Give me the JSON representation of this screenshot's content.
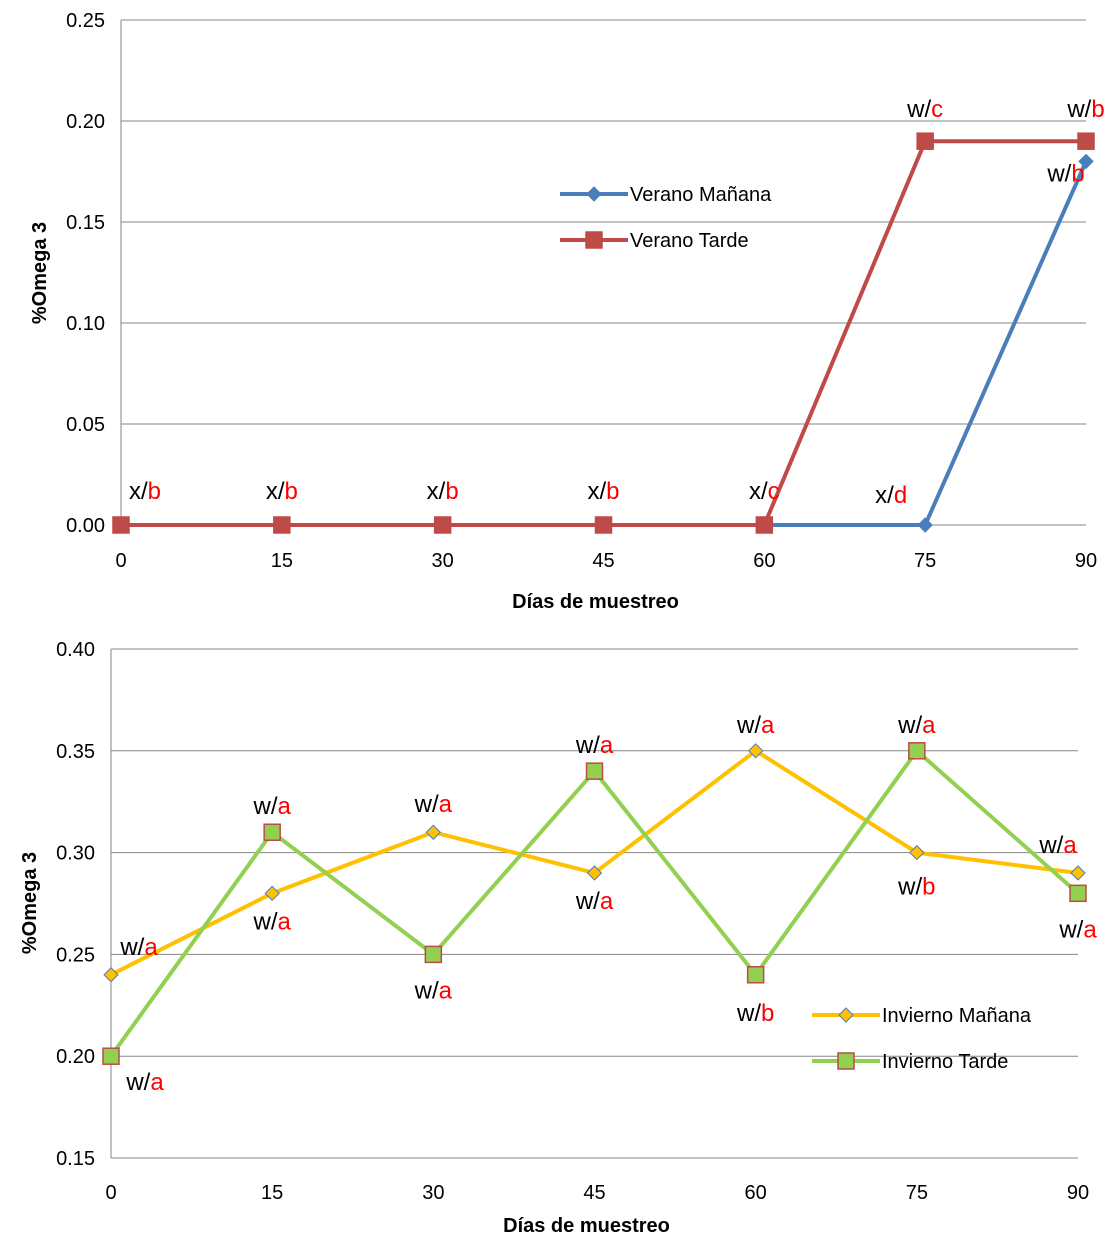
{
  "chart_data": [
    {
      "type": "line",
      "title": "",
      "xlabel": "Días de muestreo",
      "ylabel": "%Omega 3",
      "x": [
        0,
        15,
        30,
        45,
        60,
        75,
        90
      ],
      "xlim": [
        0,
        90
      ],
      "ylim": [
        0,
        0.25
      ],
      "yticks": [
        "0.00",
        "0.05",
        "0.10",
        "0.15",
        "0.20",
        "0.25"
      ],
      "grid": "horizontal",
      "legend_position": "center-right",
      "series": [
        {
          "name": "Verano Mañana",
          "color": "#4a7ebb",
          "marker": "diamond",
          "values": [
            0,
            0,
            0,
            0,
            0,
            0,
            0.18
          ],
          "annotations": [
            null,
            null,
            null,
            null,
            null,
            {
              "prefix": "x/",
              "letter": "d"
            },
            {
              "prefix": "w/",
              "letter": "b"
            }
          ]
        },
        {
          "name": "Verano Tarde",
          "color": "#be4b48",
          "marker": "square",
          "values": [
            0,
            0,
            0,
            0,
            0,
            0.19,
            0.19
          ],
          "annotations": [
            {
              "prefix": "x/",
              "letter": "b"
            },
            {
              "prefix": "x/",
              "letter": "b"
            },
            {
              "prefix": "x/",
              "letter": "b"
            },
            {
              "prefix": "x/",
              "letter": "b"
            },
            {
              "prefix": "x/",
              "letter": "c"
            },
            {
              "prefix": "w/",
              "letter": "c"
            },
            {
              "prefix": "w/",
              "letter": "b"
            }
          ]
        }
      ],
      "annotation_letter_color": "#ff0000"
    },
    {
      "type": "line",
      "title": "",
      "xlabel": "Días de muestreo",
      "ylabel": "%Omega 3",
      "x": [
        0,
        15,
        30,
        45,
        60,
        75,
        90
      ],
      "xlim": [
        0,
        90
      ],
      "ylim": [
        0.15,
        0.4
      ],
      "yticks": [
        "0.15",
        "0.20",
        "0.25",
        "0.30",
        "0.35",
        "0.40"
      ],
      "grid": "horizontal",
      "legend_position": "bottom-right",
      "series": [
        {
          "name": "Invierno Mañana",
          "color": "#ffc000",
          "marker": "diamond",
          "values": [
            0.24,
            0.28,
            0.31,
            0.29,
            0.35,
            0.3,
            0.29
          ],
          "annotations": [
            {
              "prefix": "w/",
              "letter": "a"
            },
            {
              "prefix": "w/",
              "letter": "a"
            },
            {
              "prefix": "w/",
              "letter": "a"
            },
            {
              "prefix": "w/",
              "letter": "a"
            },
            {
              "prefix": "w/",
              "letter": "a"
            },
            {
              "prefix": "w/",
              "letter": "b"
            },
            {
              "prefix": "w/",
              "letter": "a"
            }
          ]
        },
        {
          "name": "Invierno Tarde",
          "color": "#92d050",
          "marker": "square",
          "values": [
            0.2,
            0.31,
            0.25,
            0.34,
            0.24,
            0.35,
            0.28
          ],
          "annotations": [
            {
              "prefix": "w/",
              "letter": "a"
            },
            {
              "prefix": "w/",
              "letter": "a"
            },
            {
              "prefix": "w/",
              "letter": "a"
            },
            {
              "prefix": "w/",
              "letter": "a"
            },
            {
              "prefix": "w/",
              "letter": "b"
            },
            {
              "prefix": "w/",
              "letter": "a"
            },
            {
              "prefix": "w/",
              "letter": "a"
            }
          ]
        }
      ],
      "annotation_letter_color": "#ff0000"
    }
  ]
}
